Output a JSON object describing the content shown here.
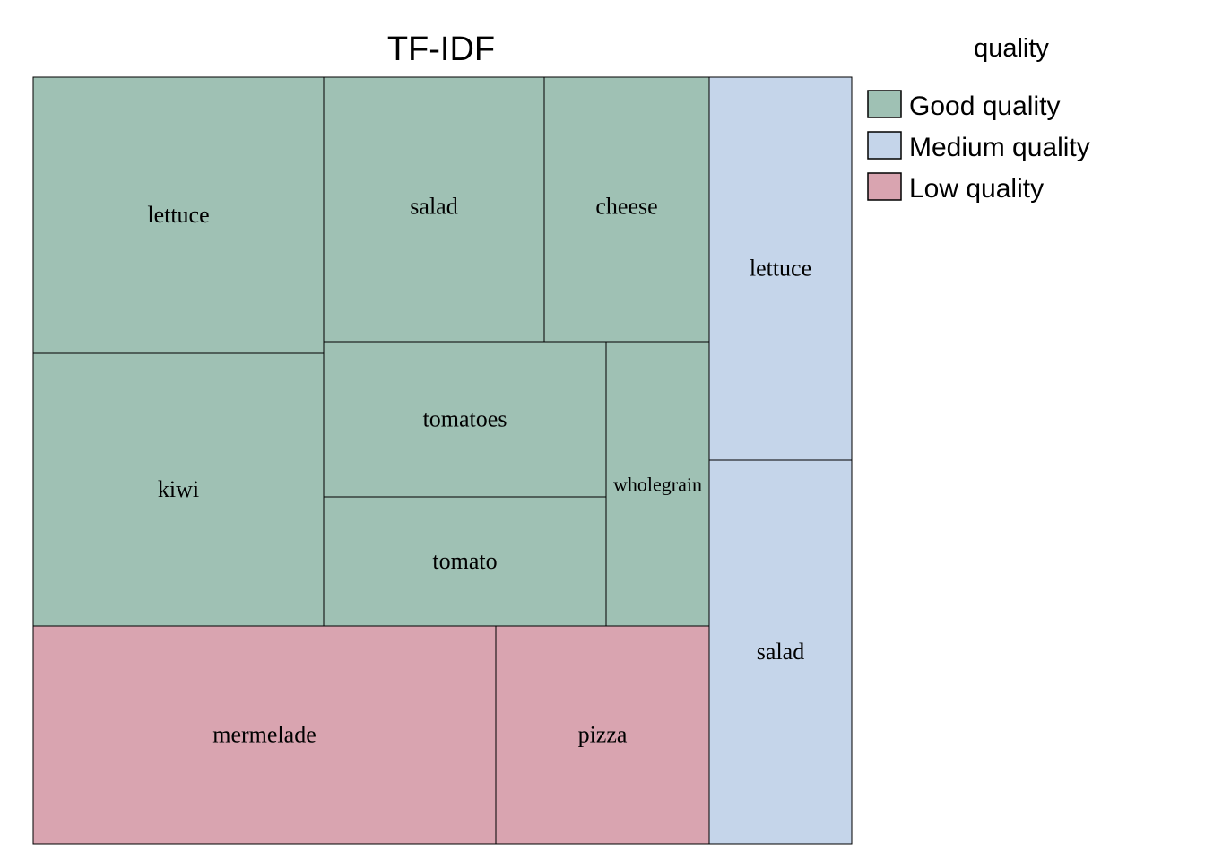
{
  "chart_data": {
    "type": "treemap",
    "title": "TF-IDF",
    "legend": {
      "title": "quality",
      "position": "top-right",
      "entries": [
        {
          "label": "Good quality",
          "color": "#9fc1b4"
        },
        {
          "label": "Medium quality",
          "color": "#c5d5ea"
        },
        {
          "label": "Low quality",
          "color": "#d9a4b0"
        }
      ]
    },
    "groups": [
      {
        "name": "Good quality",
        "color": "#9fc1b4",
        "items": [
          {
            "label": "lettuce",
            "value": 0.099
          },
          {
            "label": "kiwi",
            "value": 0.098
          },
          {
            "label": "salad",
            "value": 0.072
          },
          {
            "label": "cheese",
            "value": 0.054
          },
          {
            "label": "tomatoes",
            "value": 0.054
          },
          {
            "label": "tomato",
            "value": 0.045
          },
          {
            "label": "wholegrain",
            "value": 0.035
          }
        ]
      },
      {
        "name": "Medium quality",
        "color": "#c5d5ea",
        "items": [
          {
            "label": "lettuce",
            "value": 0.068
          },
          {
            "label": "salad",
            "value": 0.068
          }
        ]
      },
      {
        "name": "Low quality",
        "color": "#d9a4b0",
        "items": [
          {
            "label": "mermelade",
            "value": 0.125
          },
          {
            "label": "pizza",
            "value": 0.058
          }
        ]
      }
    ]
  }
}
